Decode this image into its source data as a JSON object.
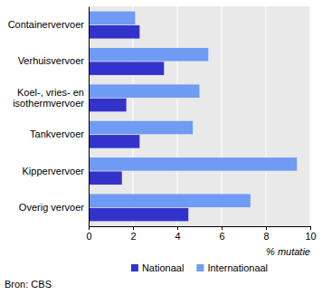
{
  "chart_data": {
    "type": "bar",
    "orientation": "horizontal",
    "categories": [
      "Containervervoer",
      "Verhuisvervoer",
      "Koel-, vries- en\nisothermvervoer",
      "Tankvervoer",
      "Kippervervoer",
      "Overig vervoer"
    ],
    "series": [
      {
        "name": "Nationaal",
        "color": "#3333cc",
        "values": [
          2.3,
          3.4,
          1.7,
          2.3,
          1.5,
          4.5
        ]
      },
      {
        "name": "Internationaal",
        "color": "#6f9bf5",
        "values": [
          2.1,
          5.4,
          5.0,
          4.7,
          9.4,
          7.3
        ]
      }
    ],
    "xlim": [
      0,
      10
    ],
    "xticks": [
      0,
      2,
      4,
      6,
      8,
      10
    ],
    "x_label": "% mutatie",
    "grid": true,
    "legend": "bottom",
    "source": "Bron: CBS"
  }
}
